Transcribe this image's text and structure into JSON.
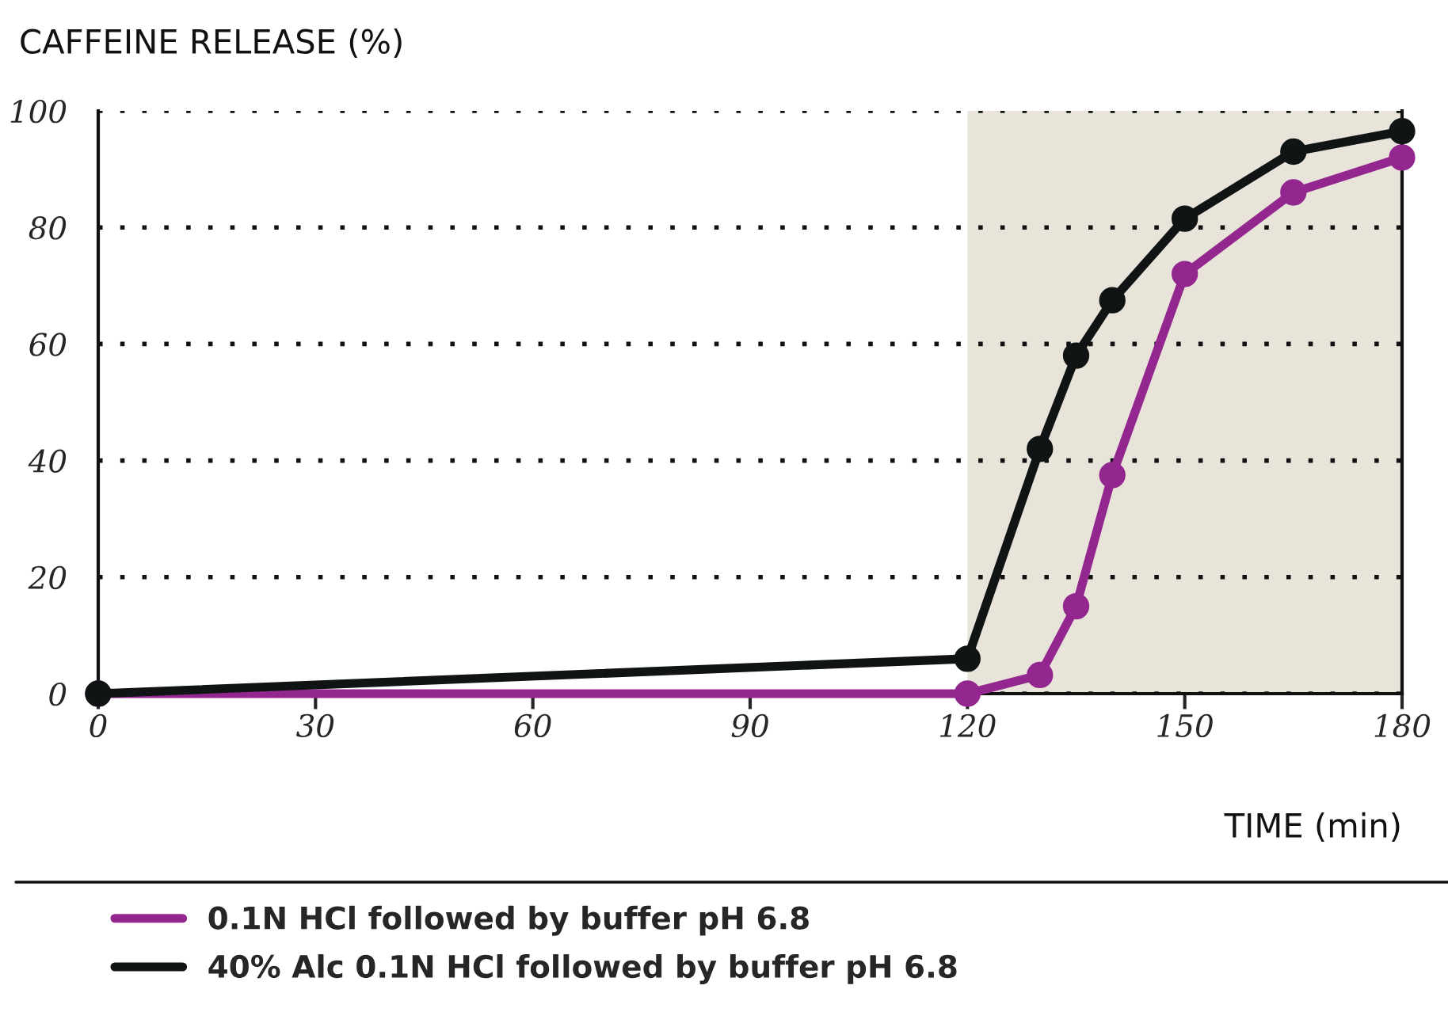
{
  "chart_data": {
    "type": "line",
    "ylabel": "CAFFEINE RELEASE (%)",
    "xlabel": "TIME (min)",
    "x": [
      0,
      120,
      130,
      135,
      140,
      150,
      165,
      180
    ],
    "series": [
      {
        "name": "0.1N HCl followed by buffer pH 6.8",
        "color": "#93278f",
        "values": [
          0,
          0,
          3.2,
          15,
          37.5,
          72,
          86,
          92
        ]
      },
      {
        "name": "40% Alc 0.1N HCl followed by buffer pH 6.8",
        "color": "#111414",
        "values": [
          0,
          6,
          42,
          58,
          67.5,
          81.5,
          93,
          96.5
        ]
      }
    ],
    "xlim": [
      0,
      180
    ],
    "xticks": [
      0,
      30,
      60,
      90,
      120,
      150,
      180
    ],
    "ylim": [
      0,
      100
    ],
    "yticks": [
      0,
      20,
      40,
      60,
      80,
      100
    ],
    "bands": [
      {
        "axis": "x",
        "from": 120,
        "to": 180,
        "color": "#e8e4da"
      }
    ],
    "grid": "y",
    "legend": "bottom",
    "marker": "circle",
    "line_style": "solid"
  }
}
